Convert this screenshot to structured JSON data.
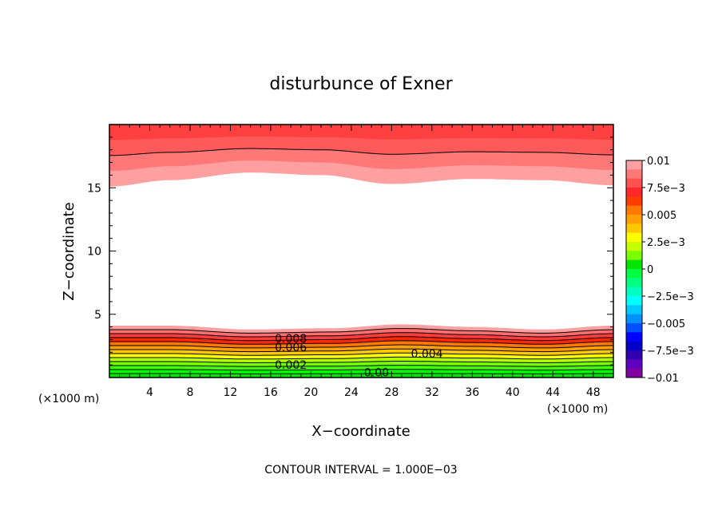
{
  "chart_data": {
    "type": "heatmap",
    "title": "disturbunce of Exner",
    "xlabel": "X−coordinate",
    "ylabel": "Z−coordinate",
    "x_unit_left": "(×1000 m)",
    "x_unit_right": "(×1000 m)",
    "footnote": "CONTOUR INTERVAL = 1.000E−03",
    "xlim": [
      0,
      50
    ],
    "ylim": [
      0,
      20
    ],
    "x_ticks": [
      4,
      8,
      12,
      16,
      20,
      24,
      28,
      32,
      36,
      40,
      44,
      48
    ],
    "x_tick_labels": [
      "4",
      "8",
      "12",
      "16",
      "20",
      "24",
      "28",
      "32",
      "36",
      "40",
      "44",
      "48"
    ],
    "y_ticks": [
      5,
      10,
      15
    ],
    "y_tick_labels": [
      "5",
      "10",
      "15"
    ],
    "contour_interval": 0.001,
    "contour_labels": [
      {
        "text": "0.008",
        "x": 18,
        "z": 3.1
      },
      {
        "text": "0.006",
        "x": 18,
        "z": 2.4
      },
      {
        "text": "0.004",
        "x": 31.5,
        "z": 1.9
      },
      {
        "text": "0.002",
        "x": 18,
        "z": 1.0
      },
      {
        "text": "0.00",
        "x": 26.5,
        "z": 0.4
      }
    ],
    "bottom_band": {
      "description_values": "disturbance decreases from ~0.01 near z=4 to ~0 at z=0",
      "top_boundary_z": [
        4.1,
        4.1,
        3.8,
        3.9,
        4.2,
        4.0,
        3.8,
        4.1
      ],
      "top_boundary_x": [
        0,
        6,
        14,
        22,
        29,
        36,
        43,
        50
      ]
    },
    "top_band": {
      "bottom_boundary_z": [
        15.1,
        15.6,
        16.2,
        16.0,
        15.3,
        15.7,
        15.6,
        15.2
      ],
      "bottom_boundary_x": [
        0,
        6,
        14,
        21,
        28,
        36,
        43,
        50
      ]
    },
    "colorbar": {
      "labels": [
        "0.01",
        "7.5e−3",
        "0.005",
        "2.5e−3",
        "0",
        "−2.5e−3",
        "−0.005",
        "−7.5e−3",
        "−0.01"
      ],
      "colors_top_to_bottom": [
        "#ffa0a0",
        "#ff7878",
        "#ff5050",
        "#ff2828",
        "#ff3c00",
        "#ff7800",
        "#ffa000",
        "#ffc800",
        "#ffff00",
        "#c8ff00",
        "#78ff00",
        "#00e600",
        "#00ff40",
        "#00ff80",
        "#00ffc0",
        "#00ffff",
        "#00c8ff",
        "#0090ff",
        "#0050ff",
        "#0000ff",
        "#0000c8",
        "#3000b0",
        "#6000c0",
        "#8000a0"
      ]
    }
  }
}
